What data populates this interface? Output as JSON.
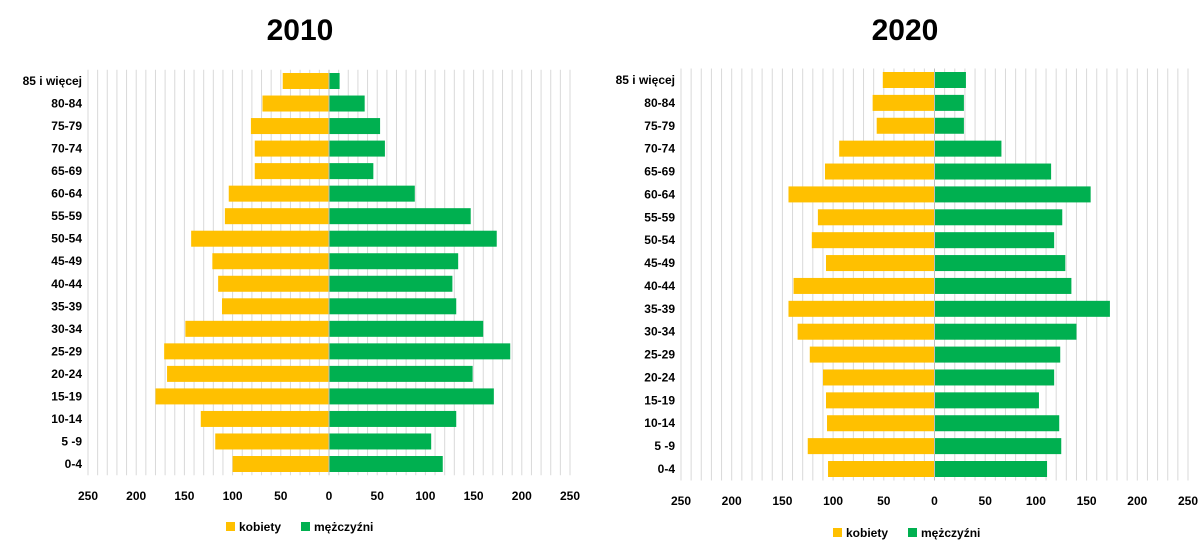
{
  "colors": {
    "kobiety": "#FFC000",
    "mezczyzni": "#00B050",
    "grid": "#D9D9D9",
    "axis": "#BFBFBF"
  },
  "legend": {
    "female": "kobiety",
    "male": "mężczyźni"
  },
  "chart_data": [
    {
      "type": "bar",
      "orientation": "horizontal-pyramid",
      "title": "2010",
      "categories": [
        "0-4",
        "5 -9",
        "10-14",
        "15-19",
        "20-24",
        "25-29",
        "30-34",
        "35-39",
        "40-44",
        "45-49",
        "50-54",
        "55-59",
        "60-64",
        "65-69",
        "70-74",
        "75-79",
        "80-84",
        "85 i więcej"
      ],
      "series": [
        {
          "name": "kobiety",
          "values": [
            100,
            118,
            133,
            180,
            168,
            171,
            149,
            111,
            115,
            121,
            143,
            108,
            104,
            77,
            77,
            81,
            69,
            48
          ]
        },
        {
          "name": "mężczyźni",
          "values": [
            118,
            106,
            132,
            171,
            149,
            188,
            160,
            132,
            128,
            134,
            174,
            147,
            89,
            46,
            58,
            53,
            37,
            11
          ]
        }
      ],
      "xlim": [
        -250,
        250
      ],
      "xticks": [
        "250",
        "200",
        "150",
        "100",
        "50",
        "0",
        "50",
        "100",
        "150",
        "200",
        "250"
      ],
      "grid": true,
      "legend_position": "bottom"
    },
    {
      "type": "bar",
      "orientation": "horizontal-pyramid",
      "title": "2020",
      "categories": [
        "0-4",
        "5 -9",
        "10-14",
        "15-19",
        "20-24",
        "25-29",
        "30-34",
        "35-39",
        "40-44",
        "45-49",
        "50-54",
        "55-59",
        "60-64",
        "65-69",
        "70-74",
        "75-79",
        "80-84",
        "85 i więcej"
      ],
      "series": [
        {
          "name": "kobiety",
          "values": [
            105,
            125,
            106,
            107,
            110,
            123,
            135,
            144,
            139,
            107,
            121,
            115,
            144,
            108,
            94,
            57,
            61,
            51
          ]
        },
        {
          "name": "mężczyźni",
          "values": [
            111,
            125,
            123,
            103,
            118,
            124,
            140,
            173,
            135,
            129,
            118,
            126,
            154,
            115,
            66,
            29,
            29,
            31
          ]
        }
      ],
      "xlim": [
        -250,
        250
      ],
      "xticks": [
        "250",
        "200",
        "150",
        "100",
        "50",
        "0",
        "50",
        "100",
        "150",
        "200",
        "250"
      ],
      "grid": true,
      "legend_position": "bottom"
    }
  ]
}
